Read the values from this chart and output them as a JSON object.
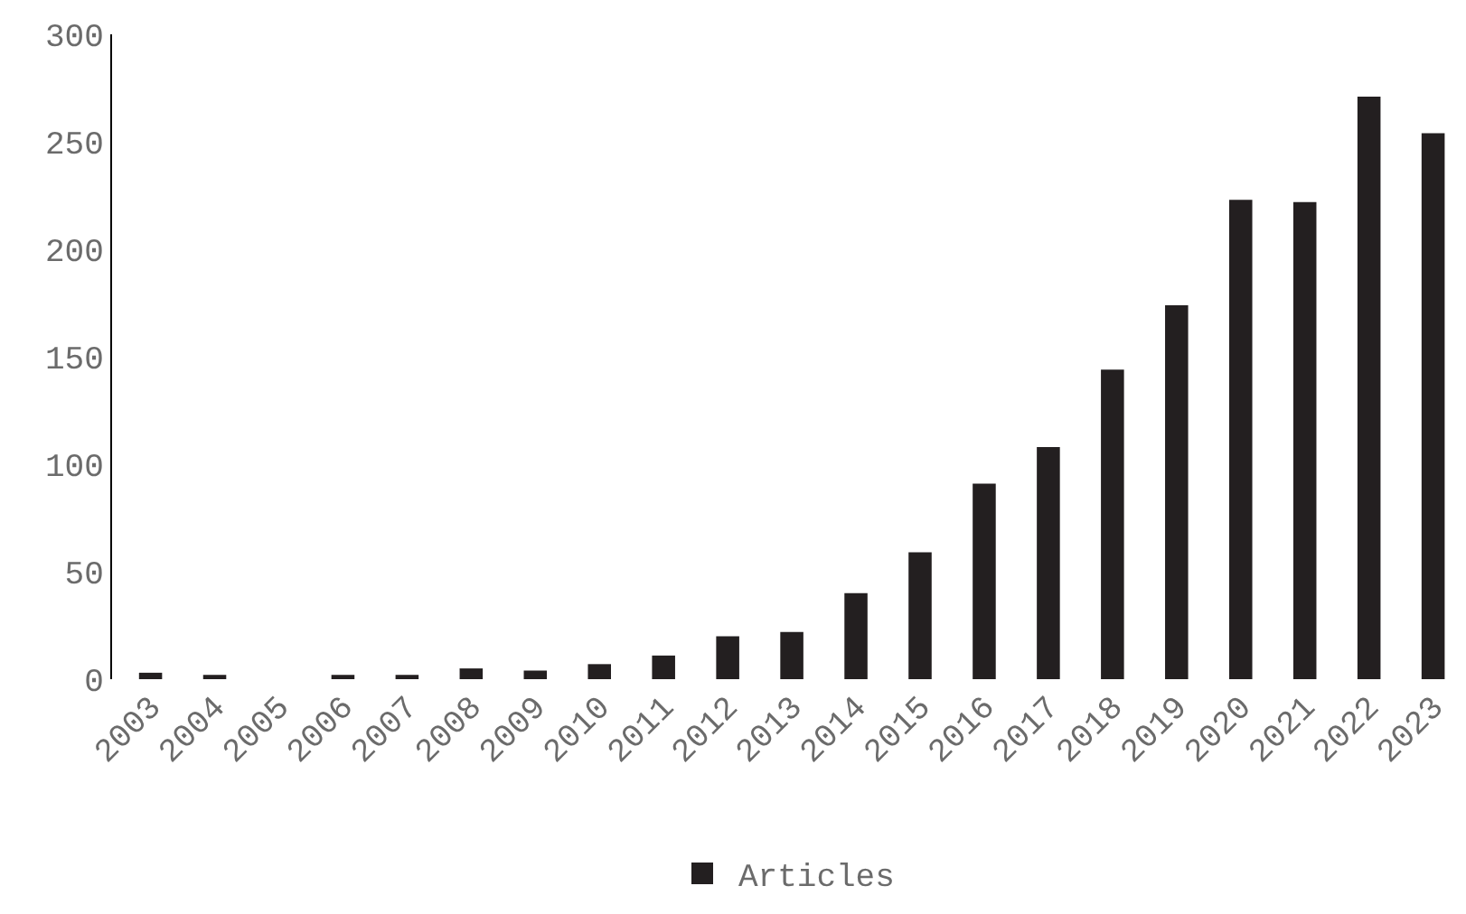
{
  "chart_data": {
    "type": "bar",
    "categories": [
      "2003",
      "2004",
      "2005",
      "2006",
      "2007",
      "2008",
      "2009",
      "2010",
      "2011",
      "2012",
      "2013",
      "2014",
      "2015",
      "2016",
      "2017",
      "2018",
      "2019",
      "2020",
      "2021",
      "2022",
      "2023"
    ],
    "series": [
      {
        "name": "Articles",
        "color": "#231f20",
        "values": [
          3,
          2,
          0,
          2,
          2,
          5,
          4,
          7,
          11,
          20,
          22,
          40,
          59,
          91,
          108,
          144,
          174,
          223,
          222,
          271,
          254
        ]
      }
    ],
    "ylim": [
      0,
      300
    ],
    "yticks": [
      0,
      50,
      100,
      150,
      200,
      250,
      300
    ],
    "legend": "bottom"
  }
}
